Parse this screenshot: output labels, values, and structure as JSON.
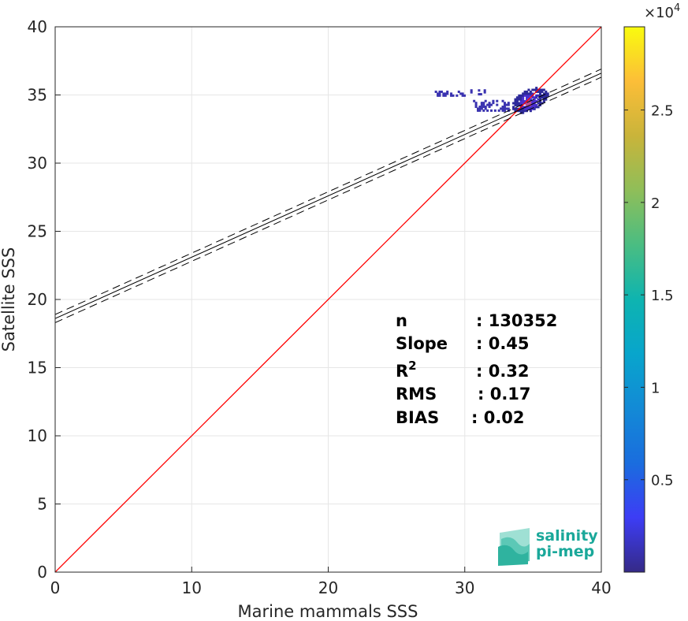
{
  "chart_data": {
    "type": "scatter",
    "title": "",
    "xlabel": "Marine mammals SSS",
    "ylabel": "Satellite SSS",
    "xlim": [
      0,
      40
    ],
    "ylim": [
      0,
      40
    ],
    "xticks": [
      0,
      10,
      20,
      30,
      40
    ],
    "yticks": [
      0,
      5,
      10,
      15,
      20,
      25,
      30,
      35,
      40
    ],
    "grid": true,
    "reference_line": {
      "x": [
        0,
        40
      ],
      "y": [
        0,
        40
      ],
      "color": "#ff0000"
    },
    "regression": {
      "intercept": 18.6,
      "slope": 0.45,
      "ci_offset": 0.3,
      "color": "#000000"
    },
    "density_clusters": [
      {
        "x_range": [
          33.2,
          36.2
        ],
        "y_range": [
          33.5,
          35.6
        ],
        "peak": [
          34.6,
          34.4
        ],
        "level": "high"
      },
      {
        "x_range": [
          27.8,
          30.0
        ],
        "y_range": [
          34.9,
          35.3
        ],
        "level": "low"
      },
      {
        "x_range": [
          30.4,
          31.4
        ],
        "y_range": [
          35.0,
          35.4
        ],
        "level": "low"
      },
      {
        "x_range": [
          30.6,
          33.4
        ],
        "y_range": [
          33.8,
          34.6
        ],
        "level": "low"
      }
    ],
    "colorbar": {
      "ticks": [
        "0.5",
        "1",
        "1.5",
        "2",
        "2.5"
      ],
      "tick_values": [
        5000,
        10000,
        15000,
        20000,
        25000
      ],
      "range": [
        0,
        29500
      ],
      "exponent": "×10",
      "exponent_power": "4",
      "colormap": "parula"
    },
    "stats": [
      {
        "label": "n",
        "value": ": 130352"
      },
      {
        "label": "Slope",
        "value": ": 0.45"
      },
      {
        "label": "R",
        "sup": "2",
        "value": ": 0.32"
      },
      {
        "label": "RMS",
        "value": ": 0.17"
      },
      {
        "label": "BIAS",
        "value": ": 0.02"
      }
    ]
  },
  "logo": {
    "line1": "salinity",
    "line2": "pi-mep",
    "color": "#1aa89a"
  }
}
